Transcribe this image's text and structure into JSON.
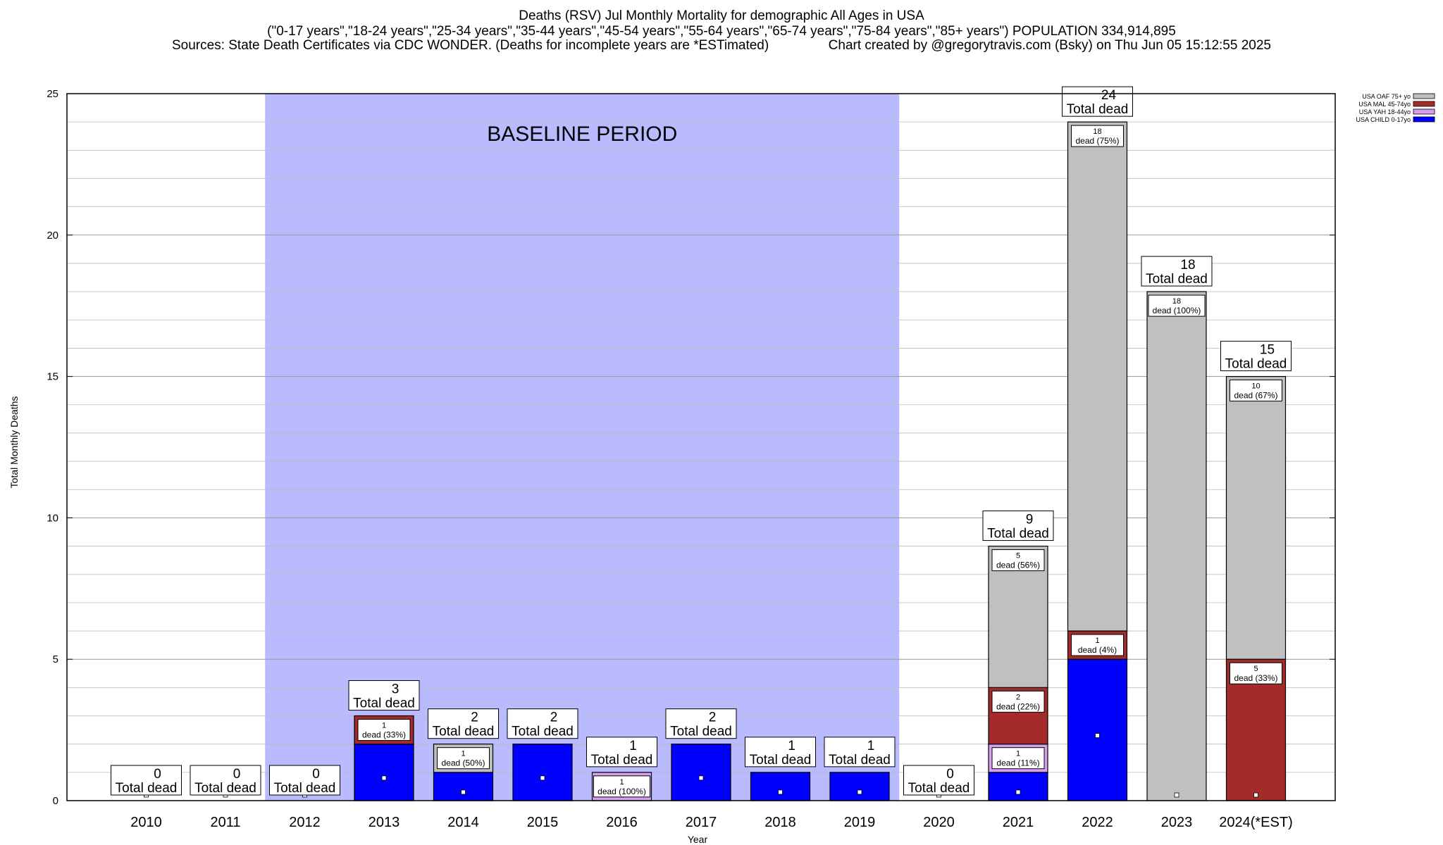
{
  "header": {
    "line1": "Deaths (RSV) Jul Monthly Mortality for demographic All Ages in USA",
    "line2": "(\"0-17 years\",\"18-24 years\",\"25-34 years\",\"35-44 years\",\"45-54 years\",\"55-64 years\",\"65-74 years\",\"75-84 years\",\"85+ years\") POPULATION 334,914,895",
    "line3": "Sources: State Death Certificates via CDC WONDER. (Deaths for incomplete years are *ESTimated)                Chart created by @gregorytravis.com (Bsky) on Thu Jun 05 15:12:55 2025"
  },
  "chart_data": {
    "type": "bar",
    "stacked": true,
    "xlabel": "Year",
    "ylabel": "Total Monthly Deaths",
    "ylim": [
      0,
      25
    ],
    "yticks": [
      0,
      5,
      10,
      15,
      20,
      25
    ],
    "grid": true,
    "legend_position": "top-right",
    "categories": [
      "2010",
      "2011",
      "2012",
      "2013",
      "2014",
      "2015",
      "2016",
      "2017",
      "2018",
      "2019",
      "2020",
      "2021",
      "2022",
      "2023",
      "2024(*EST)"
    ],
    "series": [
      {
        "name": "USA CHILD 0-17yo",
        "color": "#0000ff",
        "values": [
          0,
          0,
          0,
          2,
          1,
          2,
          0,
          2,
          1,
          1,
          0,
          1,
          5,
          0,
          0
        ]
      },
      {
        "name": "USA YAH 18-44yo",
        "color": "#d7a0ee",
        "values": [
          0,
          0,
          0,
          0,
          0,
          0,
          1,
          0,
          0,
          0,
          0,
          1,
          0,
          0,
          0
        ]
      },
      {
        "name": "USA MAL 45-74yo",
        "color": "#a52a2a",
        "values": [
          0,
          0,
          0,
          1,
          0,
          0,
          0,
          0,
          0,
          0,
          0,
          2,
          1,
          0,
          5
        ]
      },
      {
        "name": "USA OAF 75+ yo",
        "color": "#c0c0c0",
        "values": [
          0,
          0,
          0,
          0,
          1,
          0,
          0,
          0,
          0,
          0,
          0,
          5,
          18,
          18,
          10
        ]
      }
    ],
    "totals": [
      0,
      0,
      0,
      3,
      2,
      2,
      1,
      2,
      1,
      1,
      0,
      9,
      24,
      18,
      15
    ],
    "total_label": "Total dead",
    "segment_labels": [
      {
        "category": "2013",
        "series": 2,
        "count": "1",
        "text": "dead (33%)"
      },
      {
        "category": "2014",
        "series": 3,
        "count": "1",
        "text": "dead (50%)"
      },
      {
        "category": "2016",
        "series": 1,
        "count": "1",
        "text": "dead (100%)"
      },
      {
        "category": "2021",
        "series": 1,
        "count": "1",
        "text": "dead (11%)"
      },
      {
        "category": "2021",
        "series": 2,
        "count": "2",
        "text": "dead (22%)"
      },
      {
        "category": "2021",
        "series": 3,
        "count": "5",
        "text": "dead (56%)"
      },
      {
        "category": "2022",
        "series": 2,
        "count": "1",
        "text": "dead (4%)"
      },
      {
        "category": "2022",
        "series": 3,
        "count": "18",
        "text": "dead (75%)"
      },
      {
        "category": "2023",
        "series": 3,
        "count": "18",
        "text": "dead (100%)"
      },
      {
        "category": "2024(*EST)",
        "series": 2,
        "count": "5",
        "text": "dead (33%)"
      },
      {
        "category": "2024(*EST)",
        "series": 3,
        "count": "10",
        "text": "dead (67%)"
      }
    ],
    "baseline": {
      "label": "BASELINE PERIOD",
      "from": "2012",
      "to": "2019",
      "color": "#babaff"
    }
  }
}
